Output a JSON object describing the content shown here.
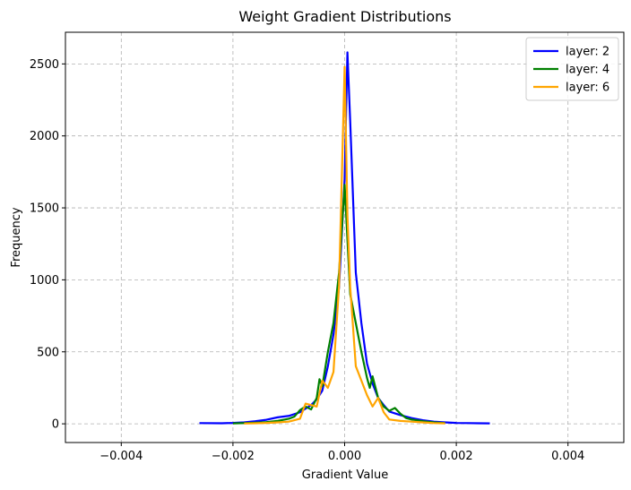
{
  "chart_data": {
    "type": "line",
    "title": "Weight Gradient Distributions",
    "xlabel": "Gradient Value",
    "ylabel": "Frequency",
    "xlim": [
      -0.005,
      0.005
    ],
    "ylim": [
      -130,
      2720
    ],
    "xticks": [
      -0.004,
      -0.002,
      0.0,
      0.002,
      0.004
    ],
    "xtick_labels": [
      "−0.004",
      "−0.002",
      "0.000",
      "0.002",
      "0.004"
    ],
    "yticks": [
      0,
      500,
      1000,
      1500,
      2000,
      2500
    ],
    "ytick_labels": [
      "0",
      "500",
      "1000",
      "1500",
      "2000",
      "2500"
    ],
    "grid": true,
    "legend_position": "top-right",
    "series": [
      {
        "name": "layer: 2",
        "color": "#0000ff",
        "x": [
          -0.0026,
          -0.0022,
          -0.002,
          -0.0018,
          -0.0016,
          -0.0014,
          -0.0012,
          -0.001,
          -0.0008,
          -0.0006,
          -0.0005,
          -0.0004,
          -0.0003,
          -0.0002,
          -0.0001,
          0.0,
          5e-05,
          0.0001,
          0.0002,
          0.0003,
          0.0004,
          0.0005,
          0.0006,
          0.0007,
          0.0008,
          0.001,
          0.0012,
          0.0014,
          0.0016,
          0.0018,
          0.002,
          0.0022,
          0.0024,
          0.0026
        ],
        "y": [
          5,
          4,
          6,
          10,
          18,
          28,
          45,
          55,
          80,
          130,
          170,
          230,
          400,
          620,
          950,
          1700,
          2580,
          2100,
          1050,
          700,
          420,
          280,
          180,
          130,
          85,
          60,
          40,
          25,
          15,
          10,
          6,
          5,
          4,
          3
        ]
      },
      {
        "name": "layer: 4",
        "color": "#008000",
        "x": [
          -0.002,
          -0.0018,
          -0.0016,
          -0.0014,
          -0.0012,
          -0.001,
          -0.0009,
          -0.0008,
          -0.0007,
          -0.0006,
          -0.0005,
          -0.00045,
          -0.0004,
          -0.0003,
          -0.0002,
          -0.0001,
          0.0,
          0.0001,
          0.0002,
          0.0003,
          0.0004,
          0.00045,
          0.0005,
          0.0006,
          0.0007,
          0.0008,
          0.0009,
          0.001,
          0.0011,
          0.0012,
          0.0014,
          0.0016,
          0.0018
        ],
        "y": [
          3,
          5,
          8,
          12,
          20,
          35,
          50,
          95,
          120,
          100,
          180,
          310,
          260,
          500,
          700,
          1050,
          1660,
          900,
          700,
          500,
          320,
          250,
          330,
          180,
          120,
          90,
          110,
          70,
          40,
          30,
          18,
          10,
          5
        ]
      },
      {
        "name": "layer: 6",
        "color": "#ffa500",
        "x": [
          -0.0018,
          -0.0016,
          -0.0014,
          -0.0012,
          -0.001,
          -0.0008,
          -0.0007,
          -0.0006,
          -0.0005,
          -0.0004,
          -0.0003,
          -0.0002,
          -0.0001,
          0.0,
          5e-05,
          0.0001,
          0.0002,
          0.0003,
          0.0004,
          0.0005,
          0.0006,
          0.0007,
          0.0008,
          0.001,
          0.0012,
          0.0014,
          0.0016,
          0.0018
        ],
        "y": [
          2,
          4,
          6,
          10,
          15,
          35,
          140,
          130,
          120,
          300,
          250,
          360,
          960,
          2480,
          1450,
          950,
          400,
          300,
          200,
          120,
          180,
          80,
          30,
          20,
          15,
          10,
          5,
          3
        ]
      }
    ]
  }
}
